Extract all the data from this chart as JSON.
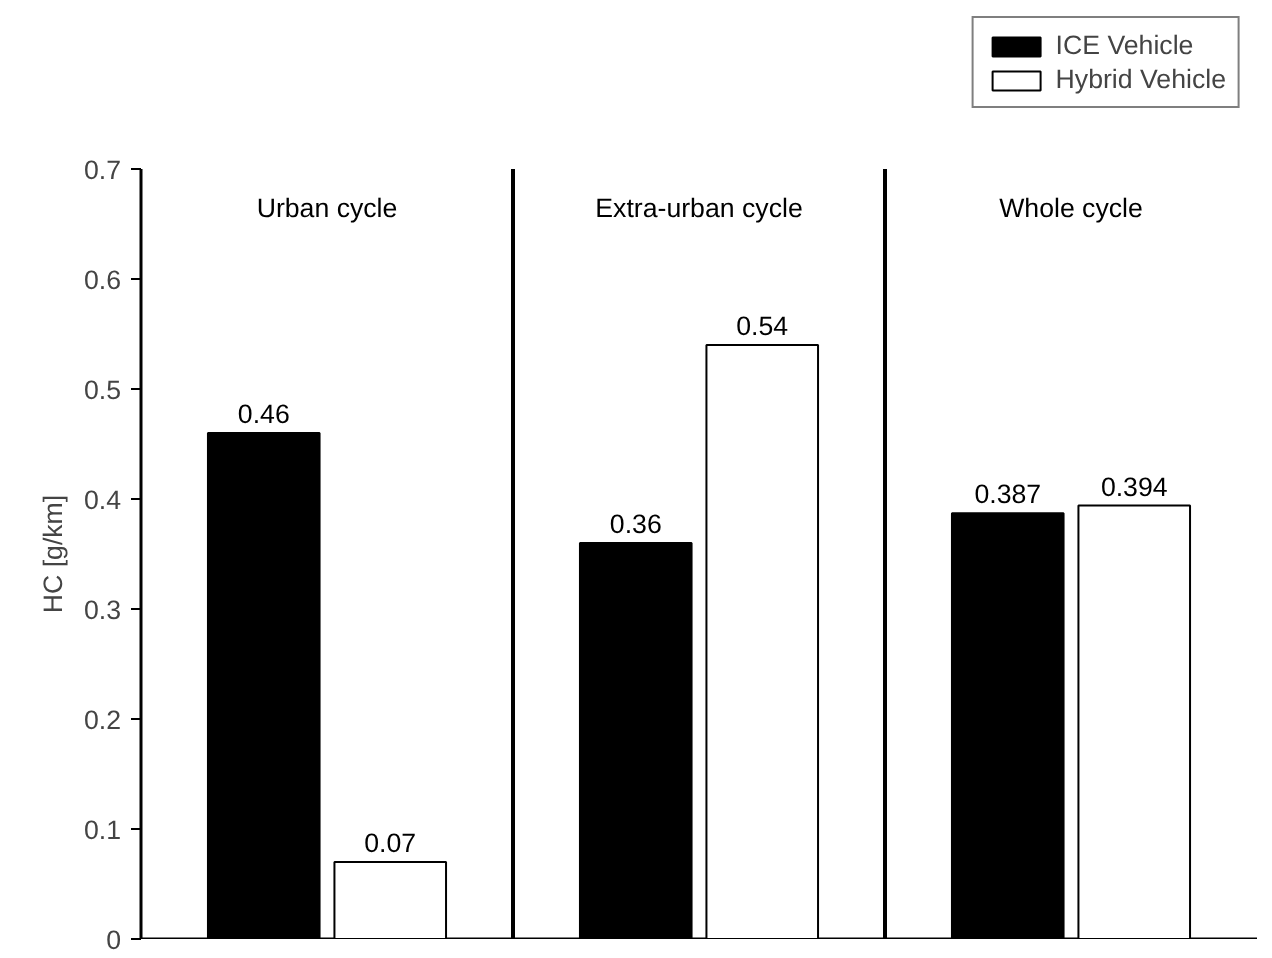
{
  "chart_data": {
    "type": "bar",
    "ylabel": "HC [g/km]",
    "categories": [
      "Urban cycle",
      "Extra-urban cycle",
      "Whole cycle"
    ],
    "series": [
      {
        "name": "ICE Vehicle",
        "color": "#000000",
        "values": [
          0.46,
          0.36,
          0.387
        ]
      },
      {
        "name": "Hybrid Vehicle",
        "color": "#ffffff",
        "values": [
          0.07,
          0.54,
          0.394
        ]
      }
    ],
    "ylim": [
      0,
      0.7
    ],
    "yticks": [
      0,
      0.1,
      0.2,
      0.3,
      0.4,
      0.5,
      0.6,
      0.7
    ],
    "data_labels": true,
    "legend": "top right",
    "grid": false
  }
}
